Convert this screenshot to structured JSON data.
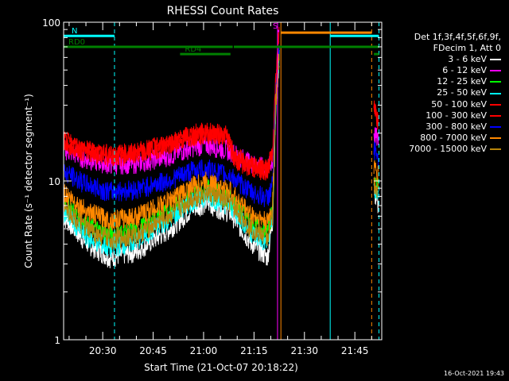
{
  "chart_data": {
    "type": "line",
    "title": "RHESSI Count Rates",
    "xlabel": "Start Time (21-Oct-07 20:18:22)",
    "ylabel": "Count Rate (s⁻¹ detector segment⁻¹)",
    "yscale": "log",
    "ylim": [
      1,
      100
    ],
    "y_tick_labels": [
      "1",
      "10",
      "100"
    ],
    "xlim": [
      "20:18:22",
      "21:53:00"
    ],
    "x_tick_labels": [
      "20:30",
      "20:45",
      "21:00",
      "21:15",
      "21:30",
      "21:45"
    ],
    "legend_header": [
      "Det 1f,3f,4f,5f,6f,9f,",
      "FDecim 1, Att 0"
    ],
    "legend_position": "right",
    "series": [
      {
        "name": "3 - 6 keV",
        "color": "#ffffff",
        "gap": [
          "21:22:30",
          "21:50:40"
        ],
        "points": [
          [
            "20:18:22",
            6.0
          ],
          [
            "20:25:00",
            4.1
          ],
          [
            "20:32:00",
            3.3
          ],
          [
            "20:40:00",
            3.6
          ],
          [
            "20:50:00",
            5.0
          ],
          [
            "20:57:00",
            6.8
          ],
          [
            "21:01:00",
            7.3
          ],
          [
            "21:08:00",
            6.3
          ],
          [
            "21:14:00",
            4.1
          ],
          [
            "21:19:00",
            3.3
          ],
          [
            "21:20:30",
            5.5
          ],
          [
            "21:21:30",
            30
          ],
          [
            "21:22:30",
            60
          ],
          [
            "21:50:40",
            8.5
          ],
          [
            "21:52:00",
            7.0
          ]
        ]
      },
      {
        "name": "6 - 12 keV",
        "color": "#ff00ff",
        "gap": [
          "21:22:30",
          "21:50:40"
        ],
        "points": [
          [
            "20:18:22",
            16.0
          ],
          [
            "20:25:00",
            13.8
          ],
          [
            "20:32:00",
            12.8
          ],
          [
            "20:40:00",
            13.0
          ],
          [
            "20:50:00",
            14.5
          ],
          [
            "20:57:00",
            16.5
          ],
          [
            "21:01:00",
            17.0
          ],
          [
            "21:08:00",
            15.5
          ],
          [
            "21:14:00",
            13.0
          ],
          [
            "21:19:00",
            12.0
          ],
          [
            "21:20:30",
            13.5
          ],
          [
            "21:21:30",
            40
          ],
          [
            "21:22:30",
            75
          ],
          [
            "21:50:40",
            20
          ],
          [
            "21:52:00",
            18
          ]
        ]
      },
      {
        "name": "12 - 25 keV",
        "color": "#00ff00",
        "gap": [
          "21:22:30",
          "21:50:40"
        ],
        "points": [
          [
            "20:18:22",
            7.5
          ],
          [
            "20:25:00",
            5.3
          ],
          [
            "20:32:00",
            4.6
          ],
          [
            "20:40:00",
            4.9
          ],
          [
            "20:50:00",
            6.5
          ],
          [
            "20:57:00",
            8.3
          ],
          [
            "21:01:00",
            9.0
          ],
          [
            "21:08:00",
            7.8
          ],
          [
            "21:14:00",
            5.5
          ],
          [
            "21:19:00",
            4.8
          ],
          [
            "21:20:30",
            6.5
          ],
          [
            "21:21:30",
            32
          ],
          [
            "21:22:30",
            62
          ],
          [
            "21:50:40",
            10
          ],
          [
            "21:52:00",
            9
          ]
        ]
      },
      {
        "name": "25 - 50 keV",
        "color": "#00ffff",
        "gap": [
          "21:22:30",
          "21:50:40"
        ],
        "points": [
          [
            "20:18:22",
            6.5
          ],
          [
            "20:25:00",
            4.5
          ],
          [
            "20:32:00",
            3.8
          ],
          [
            "20:40:00",
            4.2
          ],
          [
            "20:50:00",
            5.8
          ],
          [
            "20:57:00",
            7.6
          ],
          [
            "21:01:00",
            8.1
          ],
          [
            "21:08:00",
            7.0
          ],
          [
            "21:14:00",
            4.8
          ],
          [
            "21:19:00",
            4.0
          ],
          [
            "21:20:30",
            6.0
          ],
          [
            "21:21:30",
            31
          ],
          [
            "21:22:30",
            61
          ],
          [
            "21:50:40",
            9
          ],
          [
            "21:52:00",
            8
          ]
        ]
      },
      {
        "name": "50 - 100 keV",
        "color": "#ff0000",
        "gap": [
          "21:22:30",
          "21:50:40"
        ],
        "points": [
          [
            "20:18:22",
            18.0
          ],
          [
            "20:25:00",
            15.8
          ],
          [
            "20:32:00",
            14.8
          ],
          [
            "20:40:00",
            15.2
          ],
          [
            "20:50:00",
            17.5
          ],
          [
            "20:57:00",
            20.0
          ],
          [
            "21:01:00",
            20.5
          ],
          [
            "21:07:00",
            19.5
          ],
          [
            "21:09:00",
            14.5
          ],
          [
            "21:14:00",
            12.5
          ],
          [
            "21:19:00",
            12.0
          ],
          [
            "21:20:30",
            15.0
          ],
          [
            "21:21:30",
            45
          ],
          [
            "21:22:30",
            90
          ],
          [
            "21:50:40",
            30
          ],
          [
            "21:52:00",
            25
          ]
        ]
      },
      {
        "name": "100 - 300 keV",
        "color": "#ff0000",
        "gap": [
          "21:22:30",
          "21:50:40"
        ],
        "points": [
          [
            "20:18:22",
            17.5
          ],
          [
            "20:25:00",
            15.3
          ],
          [
            "20:32:00",
            14.3
          ],
          [
            "20:40:00",
            14.8
          ],
          [
            "20:50:00",
            17.0
          ],
          [
            "20:57:00",
            19.5
          ],
          [
            "21:01:00",
            20.0
          ],
          [
            "21:07:00",
            19.0
          ],
          [
            "21:09:00",
            14.0
          ],
          [
            "21:14:00",
            12.2
          ],
          [
            "21:19:00",
            11.6
          ],
          [
            "21:20:30",
            14.5
          ],
          [
            "21:21:30",
            44
          ],
          [
            "21:22:30",
            88
          ],
          [
            "21:50:40",
            29
          ],
          [
            "21:52:00",
            24
          ]
        ]
      },
      {
        "name": "300 - 800 keV",
        "color": "#0000ff",
        "gap": [
          "21:22:30",
          "21:50:40"
        ],
        "points": [
          [
            "20:18:22",
            11.5
          ],
          [
            "20:25:00",
            9.6
          ],
          [
            "20:32:00",
            8.6
          ],
          [
            "20:40:00",
            8.9
          ],
          [
            "20:50:00",
            10.2
          ],
          [
            "20:57:00",
            11.8
          ],
          [
            "21:01:00",
            12.0
          ],
          [
            "21:08:00",
            10.8
          ],
          [
            "21:14:00",
            8.6
          ],
          [
            "21:19:00",
            7.8
          ],
          [
            "21:20:30",
            9.5
          ],
          [
            "21:21:30",
            35
          ],
          [
            "21:22:30",
            68
          ],
          [
            "21:50:40",
            16
          ],
          [
            "21:52:00",
            14
          ]
        ]
      },
      {
        "name": "800 - 7000 keV",
        "color": "#ff8800",
        "gap": [
          "21:22:30",
          "21:50:40"
        ],
        "points": [
          [
            "20:18:22",
            8.5
          ],
          [
            "20:25:00",
            6.5
          ],
          [
            "20:32:00",
            5.7
          ],
          [
            "20:40:00",
            6.0
          ],
          [
            "20:50:00",
            7.6
          ],
          [
            "20:57:00",
            9.4
          ],
          [
            "21:01:00",
            10.0
          ],
          [
            "21:08:00",
            8.6
          ],
          [
            "21:14:00",
            6.2
          ],
          [
            "21:19:00",
            5.5
          ],
          [
            "21:20:30",
            7.0
          ],
          [
            "21:21:30",
            33
          ],
          [
            "21:22:30",
            64
          ],
          [
            "21:50:40",
            12
          ],
          [
            "21:52:00",
            11
          ]
        ]
      },
      {
        "name": "7000 - 15000 keV",
        "color": "#b8860b",
        "gap": [
          "21:22:30",
          "21:50:40"
        ],
        "points": [
          [
            "20:18:22",
            7.0
          ],
          [
            "20:25:00",
            5.0
          ],
          [
            "20:32:00",
            4.3
          ],
          [
            "20:40:00",
            4.6
          ],
          [
            "20:50:00",
            6.1
          ],
          [
            "20:57:00",
            7.9
          ],
          [
            "21:01:00",
            8.5
          ],
          [
            "21:08:00",
            7.3
          ],
          [
            "21:14:00",
            5.1
          ],
          [
            "21:19:00",
            4.4
          ],
          [
            "21:20:30",
            6.2
          ],
          [
            "21:21:30",
            31
          ],
          [
            "21:22:30",
            60
          ],
          [
            "21:50:40",
            9.5
          ],
          [
            "21:52:00",
            8.5
          ]
        ]
      }
    ],
    "vertical_markers": [
      {
        "time": "20:18:22",
        "color": "#00ffff",
        "style": "solid"
      },
      {
        "time": "20:33:30",
        "color": "#00ffff",
        "style": "dashed"
      },
      {
        "time": "21:22:00",
        "color": "#ff00ff",
        "style": "solid"
      },
      {
        "time": "21:23:00",
        "color": "#ff8800",
        "style": "solid"
      },
      {
        "time": "21:37:40",
        "color": "#00ffff",
        "style": "solid"
      },
      {
        "time": "21:50:00",
        "color": "#ff8800",
        "style": "dashed"
      },
      {
        "time": "21:52:10",
        "color": "#00ffff",
        "style": "dashed"
      }
    ],
    "state_bars": [
      {
        "label": "N",
        "color": "#00ffff",
        "y": 82,
        "from": "20:18:22",
        "to": "20:33:30"
      },
      {
        "label": "",
        "color": "#00ffff",
        "y": 82,
        "from": "21:37:40",
        "to": "21:52:10"
      },
      {
        "label": "S",
        "color": "#ff00ff",
        "y": 88,
        "from": "21:22:00",
        "to": "21:22:30"
      },
      {
        "label": "",
        "color": "#ff8800",
        "y": 86,
        "from": "21:23:00",
        "to": "21:50:00"
      },
      {
        "label": "RD0",
        "color": "#008000",
        "y": 70,
        "from": "20:18:22",
        "to": "21:08:40"
      },
      {
        "label": "RD4",
        "color": "#008000",
        "y": 63,
        "from": "20:53:00",
        "to": "21:08:00"
      },
      {
        "label": "",
        "color": "#008000",
        "y": 70,
        "from": "21:09:00",
        "to": "21:52:10"
      },
      {
        "label": "",
        "color": "#008000",
        "y": 63,
        "from": "21:50:40",
        "to": "21:52:10"
      }
    ]
  },
  "timestamp": "16-Oct-2021 19:43"
}
